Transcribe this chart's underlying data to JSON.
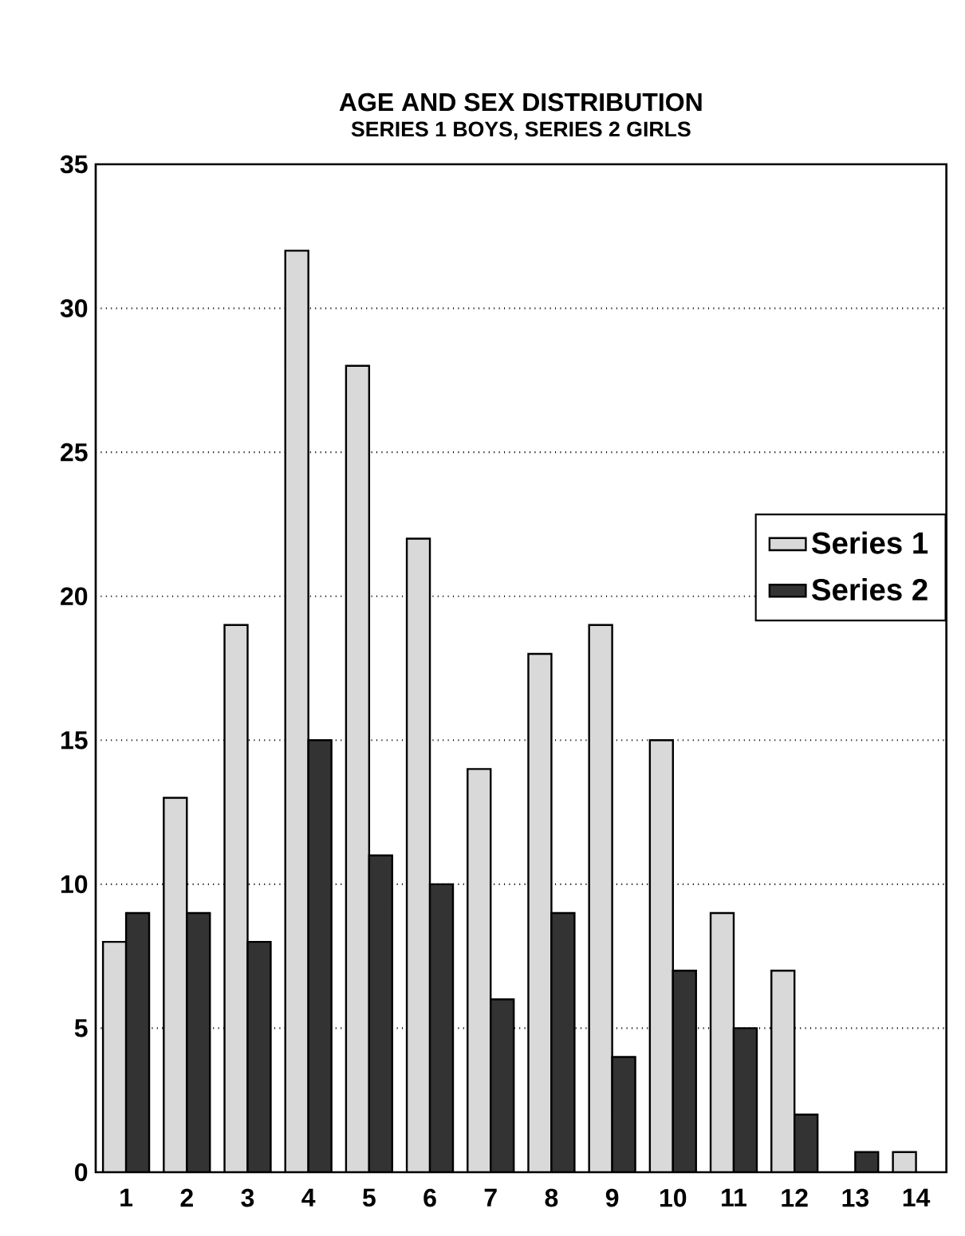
{
  "chart_data": {
    "type": "bar",
    "title": "AGE AND SEX DISTRIBUTION",
    "subtitle": "SERIES 1 BOYS, SERIES 2 GIRLS",
    "categories": [
      "1",
      "2",
      "3",
      "4",
      "5",
      "6",
      "7",
      "8",
      "9",
      "10",
      "11",
      "12",
      "13",
      "14"
    ],
    "series": [
      {
        "name": "Series 1",
        "color": "#d9d9d9",
        "values": [
          8,
          13,
          19,
          32,
          28,
          22,
          14,
          18,
          19,
          15,
          9,
          7,
          null,
          0.7
        ]
      },
      {
        "name": "Series 2",
        "color": "#333333",
        "values": [
          9,
          9,
          8,
          15,
          11,
          10,
          6,
          9,
          4,
          7,
          5,
          2,
          0.7,
          null
        ]
      }
    ],
    "ylim": [
      0,
      35
    ],
    "yticks": [
      0,
      5,
      10,
      15,
      20,
      25,
      30,
      35
    ],
    "grid": "y",
    "legend": "right"
  }
}
